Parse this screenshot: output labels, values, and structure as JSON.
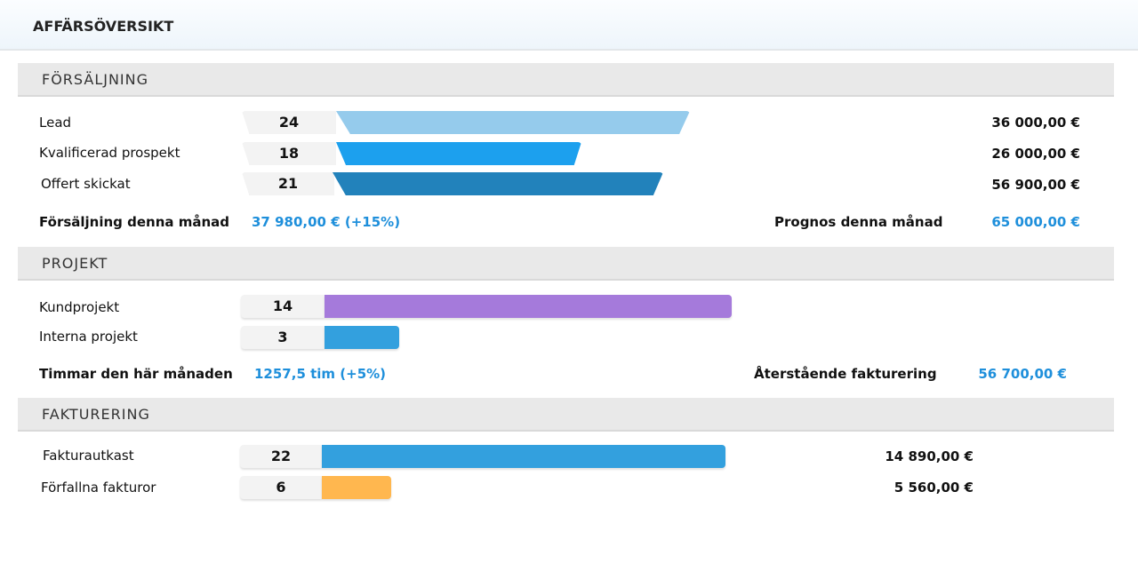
{
  "title": "AFFÄRSÖVERSIKT",
  "sales": {
    "header": "FÖRSÄLJNING",
    "rows": [
      {
        "label": "Lead",
        "count": "24",
        "amount": "36 000,00 €",
        "color": "#95cbec"
      },
      {
        "label": "Kvalificerad prospekt",
        "count": "18",
        "amount": "26 000,00 €",
        "color": "#1ca0ee"
      },
      {
        "label": "Offert skickat",
        "count": "21",
        "amount": "56 900,00 €",
        "color": "#2282bb"
      }
    ],
    "month_label": "Försäljning denna månad",
    "month_value": "37 980,00 € (+15%)",
    "forecast_label": "Prognos denna månad",
    "forecast_value": "65 000,00 €"
  },
  "projects": {
    "header": "PROJEKT",
    "rows": [
      {
        "label": "Kundprojekt",
        "count": "14",
        "color": "#a57adb"
      },
      {
        "label": "Interna projekt",
        "count": "3",
        "color": "#33a0de"
      }
    ],
    "hours_label": "Timmar den här månaden",
    "hours_value": "1257,5 tim (+5%)",
    "remaining_label": "Återstående fakturering",
    "remaining_value": "56 700,00 €"
  },
  "invoicing": {
    "header": "FAKTURERING",
    "rows": [
      {
        "label": "Fakturautkast",
        "count": "22",
        "amount": "14 890,00 €",
        "color": "#33a0de"
      },
      {
        "label": "Förfallna fakturor",
        "count": "6",
        "amount": "5 560,00 €",
        "color": "#ffb74f"
      }
    ]
  }
}
